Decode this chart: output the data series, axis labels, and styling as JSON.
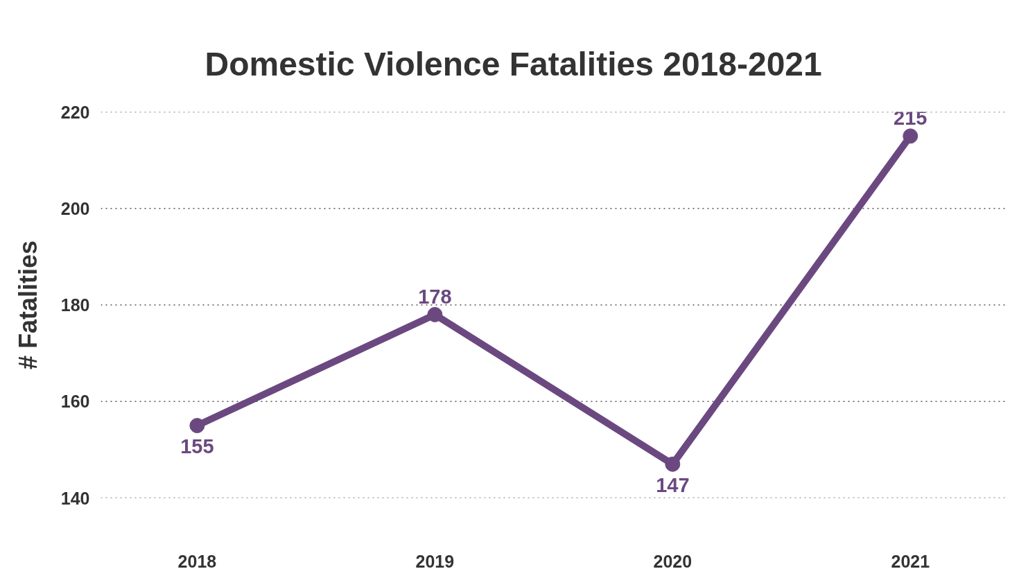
{
  "chart_data": {
    "type": "line",
    "title": "Domestic Violence Fatalities 2018-2021",
    "ylabel": "# Fatalities",
    "categories": [
      "2018",
      "2019",
      "2020",
      "2021"
    ],
    "series": [
      {
        "color": "#6b4980",
        "values": [
          155,
          178,
          147,
          215
        ]
      }
    ],
    "ylim": [
      140,
      220
    ],
    "yticks": [
      140,
      160,
      180,
      200,
      220
    ],
    "grid": "y",
    "marker": "circle",
    "line_style": "solid",
    "data_labels": true
  }
}
